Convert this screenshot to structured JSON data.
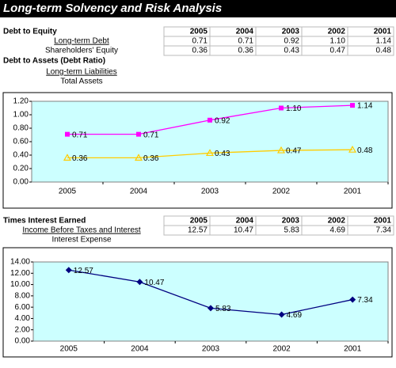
{
  "title": "Long-term Solvency and Risk Analysis",
  "debt_to_equity": {
    "label": "Debt to Equity",
    "columns": [
      "2005",
      "2004",
      "2003",
      "2002",
      "2001"
    ],
    "rows": [
      {
        "label": "Long-term Debt",
        "cells": [
          "0.71",
          "0.71",
          "0.92",
          "1.10",
          "1.14"
        ]
      },
      {
        "label": "Shareholders' Equity",
        "cells": [
          "0.36",
          "0.36",
          "0.43",
          "0.47",
          "0.48"
        ]
      }
    ]
  },
  "debt_to_assets": {
    "label": "Debt to Assets (Debt Ratio)",
    "rows": [
      "Long-term Liabilities",
      "Total Assets"
    ]
  },
  "times_interest_earned": {
    "label": "Times Interest Earned",
    "columns": [
      "2005",
      "2004",
      "2003",
      "2002",
      "2001"
    ],
    "rows": [
      {
        "label": "Income Before Taxes and Interest",
        "cells": [
          "12.57",
          "10.47",
          "5.83",
          "4.69",
          "7.34"
        ]
      },
      {
        "label": "Interest Expense"
      }
    ]
  },
  "chart_data": [
    {
      "type": "line",
      "categories": [
        "2005",
        "2004",
        "2003",
        "2002",
        "2001"
      ],
      "series": [
        {
          "color": "#ff00ff",
          "marker": "square",
          "values": [
            0.71,
            0.71,
            0.92,
            1.1,
            1.14
          ],
          "value_labels": [
            "0.71",
            "0.71",
            "0.92",
            "1.10",
            "1.14"
          ]
        },
        {
          "color": "#ffcc00",
          "marker": "triangle",
          "values": [
            0.36,
            0.36,
            0.43,
            0.47,
            0.48
          ],
          "value_labels": [
            "0.36",
            "0.36",
            "0.43",
            "0.47",
            "0.48"
          ]
        }
      ],
      "ylim": [
        0,
        1.2
      ],
      "yticks": [
        {
          "value": 0,
          "label": "0.00"
        },
        {
          "value": 0.2,
          "label": "0.20"
        },
        {
          "value": 0.4,
          "label": "0.40"
        },
        {
          "value": 0.6,
          "label": "0.60"
        },
        {
          "value": 0.8,
          "label": "0.80"
        },
        {
          "value": 1.0,
          "label": "1.00"
        },
        {
          "value": 1.2,
          "label": "1.20"
        }
      ],
      "grid": false,
      "plot_color": "#ccffff"
    },
    {
      "type": "line",
      "categories": [
        "2005",
        "2004",
        "2003",
        "2002",
        "2001"
      ],
      "series": [
        {
          "color": "#000080",
          "marker": "diamond",
          "values": [
            12.57,
            10.47,
            5.83,
            4.69,
            7.34
          ],
          "value_labels": [
            "12.57",
            "10.47",
            "5.83",
            "4.69",
            "7.34"
          ]
        }
      ],
      "ylim": [
        0,
        14
      ],
      "yticks": [
        {
          "value": 0,
          "label": "0.00"
        },
        {
          "value": 2,
          "label": "2.00"
        },
        {
          "value": 4,
          "label": "4.00"
        },
        {
          "value": 6,
          "label": "6.00"
        },
        {
          "value": 8,
          "label": "8.00"
        },
        {
          "value": 10,
          "label": "10.00"
        },
        {
          "value": 12,
          "label": "12.00"
        },
        {
          "value": 14,
          "label": "14.00"
        }
      ],
      "grid": false,
      "plot_color": "#ccffff"
    }
  ]
}
